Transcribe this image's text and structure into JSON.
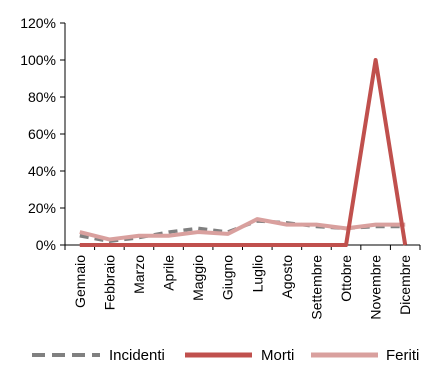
{
  "chart_data": {
    "type": "line",
    "title": "",
    "xlabel": "",
    "ylabel": "",
    "categories": [
      "Gennaio",
      "Febbraio",
      "Marzo",
      "Aprile",
      "Maggio",
      "Giugno",
      "Luglio",
      "Agosto",
      "Settembre",
      "Ottobre",
      "Novembre",
      "Dicembre"
    ],
    "ylim": [
      0,
      120
    ],
    "yticks": [
      0,
      20,
      40,
      60,
      80,
      100,
      120
    ],
    "ytick_labels": [
      "0%",
      "20%",
      "40%",
      "60%",
      "80%",
      "100%",
      "120%"
    ],
    "grid": false,
    "legend_position": "bottom",
    "series": [
      {
        "name": "Incidenti",
        "color": "#808080",
        "line_style": "dashed",
        "values": [
          5,
          2,
          4,
          7,
          9,
          7,
          13,
          12,
          10,
          9,
          10,
          10
        ]
      },
      {
        "name": "Morti",
        "color": "#c0504d",
        "line_style": "solid",
        "values": [
          0,
          0,
          0,
          0,
          0,
          0,
          0,
          0,
          0,
          0,
          100,
          0
        ]
      },
      {
        "name": "Feriti",
        "color": "#d9a09e",
        "line_style": "solid",
        "values": [
          7,
          3,
          5,
          5,
          7,
          6,
          14,
          11,
          11,
          9,
          11,
          11
        ]
      }
    ]
  }
}
